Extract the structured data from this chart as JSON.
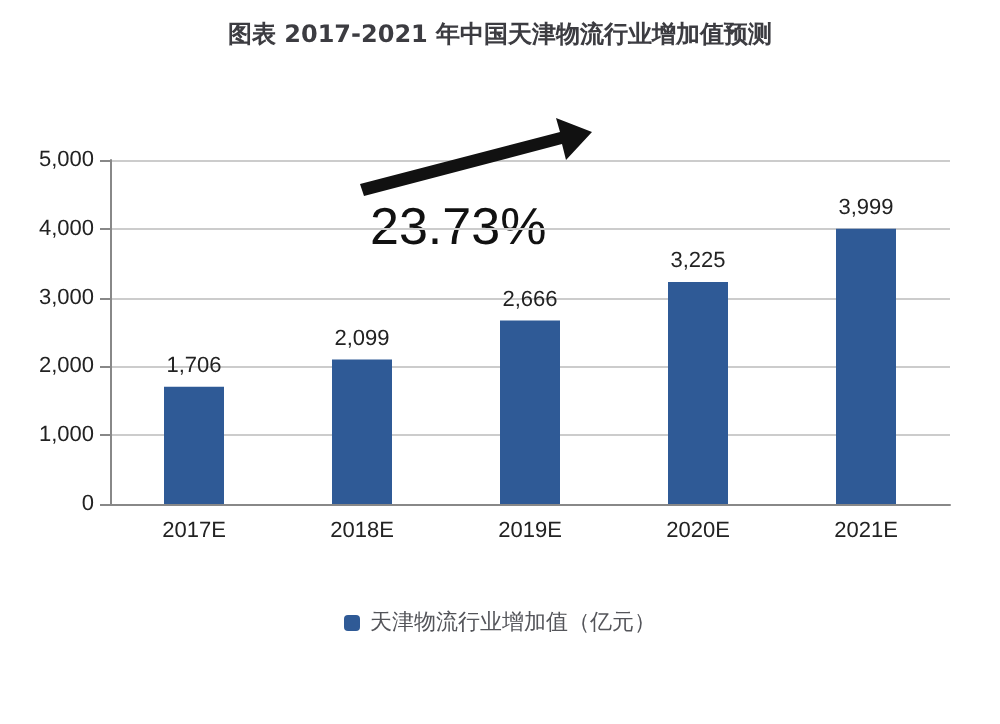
{
  "chart_data": {
    "type": "bar",
    "title": "图表 2017-2021 年中国天津物流行业增加值预测",
    "categories": [
      "2017E",
      "2018E",
      "2019E",
      "2020E",
      "2021E"
    ],
    "series": [
      {
        "name": "天津物流行业增加值（亿元）",
        "color": "#2f5a96",
        "values": [
          1706,
          2099,
          2666,
          3225,
          3999
        ],
        "value_labels": [
          "1,706",
          "2,099",
          "2,666",
          "3,225",
          "3,999"
        ]
      }
    ],
    "ylim": [
      0,
      5000
    ],
    "yticks": [
      {
        "value": 0,
        "label": "0"
      },
      {
        "value": 1000,
        "label": "1,000"
      },
      {
        "value": 2000,
        "label": "2,000"
      },
      {
        "value": 3000,
        "label": "3,000"
      },
      {
        "value": 4000,
        "label": "4,000"
      },
      {
        "value": 5000,
        "label": "5,000"
      }
    ],
    "grid": "y",
    "legend": "bottom",
    "annotations": [
      "23.73%"
    ]
  }
}
